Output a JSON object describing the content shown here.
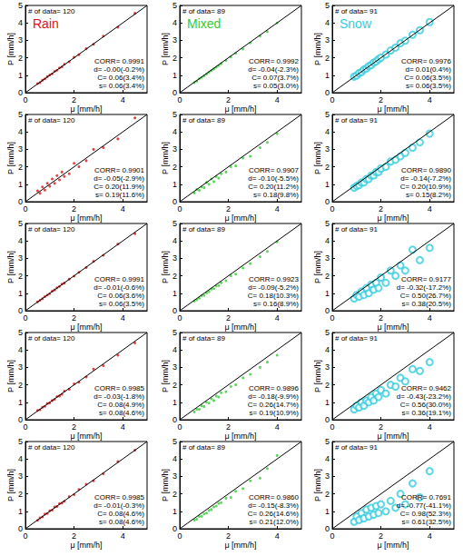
{
  "chart_data": [
    {
      "type": "scatter",
      "title": "Rain",
      "annotations": [
        "# of data= 120",
        "CORR= 0.9991",
        "d= -0.00(-0.2%)",
        "C= 0.06(3.4%)",
        "s= 0.06(3.4%)"
      ],
      "xlabel": "μ [mm/h]",
      "ylabel": "P [mm/h]",
      "xlim": [
        0,
        5
      ],
      "ylim": [
        0,
        5
      ],
      "xticks": [
        0,
        2,
        4
      ],
      "yticks": [
        0,
        1,
        2,
        3,
        4,
        5
      ],
      "color": "#dd1111",
      "marker": "dot",
      "x": [
        0.5,
        0.6,
        0.7,
        0.8,
        0.9,
        1.0,
        1.1,
        1.2,
        1.3,
        1.4,
        1.5,
        1.6,
        1.8,
        2.0,
        2.2,
        2.5,
        2.8,
        3.2,
        3.8,
        4.5
      ],
      "values": [
        0.52,
        0.58,
        0.71,
        0.79,
        0.92,
        1.01,
        1.08,
        1.22,
        1.29,
        1.42,
        1.48,
        1.63,
        1.77,
        2.03,
        2.18,
        2.52,
        2.77,
        3.24,
        3.75,
        4.55
      ]
    },
    {
      "type": "scatter",
      "title": "Mixed",
      "annotations": [
        "# of data= 89",
        "CORR= 0.9992",
        "d= -0.04(-2.3%)",
        "C= 0.07(3.7%)",
        "s= 0.05(3.0%)"
      ],
      "xlabel": "μ [mm/h]",
      "ylabel": "P [mm/h]",
      "xlim": [
        0,
        5
      ],
      "ylim": [
        0,
        5
      ],
      "xticks": [
        0,
        2,
        4
      ],
      "yticks": [
        0,
        1,
        2,
        3,
        4,
        5
      ],
      "color": "#33cc33",
      "marker": "dot",
      "x": [
        0.6,
        0.7,
        0.8,
        0.9,
        1.0,
        1.1,
        1.2,
        1.3,
        1.4,
        1.5,
        1.6,
        1.7,
        1.9,
        2.1,
        2.3,
        2.6,
        2.9,
        3.3,
        3.6,
        4.0
      ],
      "values": [
        0.58,
        0.66,
        0.79,
        0.87,
        0.96,
        1.06,
        1.17,
        1.26,
        1.36,
        1.46,
        1.55,
        1.66,
        1.85,
        2.04,
        2.25,
        2.5,
        2.85,
        3.25,
        3.5,
        4.0
      ]
    },
    {
      "type": "scatter",
      "title": "Snow",
      "annotations": [
        "# of data= 91",
        "CORR= 0.9976",
        "d= 0.01(0.4%)",
        "C= 0.06(3.5%)",
        "s= 0.06(3.5%)"
      ],
      "xlabel": "μ [mm/h]",
      "ylabel": "P [mm/h]",
      "xlim": [
        0,
        5
      ],
      "ylim": [
        0,
        5
      ],
      "xticks": [
        0,
        2,
        4
      ],
      "yticks": [
        0,
        1,
        2,
        3,
        4,
        5
      ],
      "color": "#33ccdd",
      "marker": "circle",
      "x": [
        0.9,
        1.0,
        1.1,
        1.2,
        1.3,
        1.4,
        1.5,
        1.6,
        1.7,
        1.8,
        1.9,
        2.0,
        2.2,
        2.4,
        2.6,
        2.8,
        3.0,
        3.3,
        3.6,
        4.0
      ],
      "values": [
        0.92,
        0.98,
        1.12,
        1.18,
        1.32,
        1.39,
        1.52,
        1.58,
        1.72,
        1.79,
        1.92,
        2.01,
        2.18,
        2.42,
        2.58,
        2.83,
        2.98,
        3.32,
        3.58,
        4.05
      ]
    },
    {
      "type": "scatter",
      "annotations": [
        "# of data= 120",
        "CORR= 0.9901",
        "d= -0.05(-2.9%)",
        "C= 0.20(11.9%)",
        "s= 0.19(11.6%)"
      ],
      "xlabel": "μ [mm/h]",
      "ylabel": "P [mm/h]",
      "xlim": [
        0,
        5
      ],
      "ylim": [
        0,
        5
      ],
      "xticks": [
        0,
        2,
        4
      ],
      "yticks": [
        0,
        1,
        2,
        3,
        4,
        5
      ],
      "color": "#dd1111",
      "marker": "dot",
      "x": [
        0.5,
        0.6,
        0.7,
        0.8,
        0.9,
        1.0,
        1.1,
        1.2,
        1.3,
        1.4,
        1.5,
        1.6,
        1.8,
        2.0,
        2.2,
        2.5,
        2.8,
        3.2,
        3.8,
        4.5
      ],
      "values": [
        0.62,
        0.48,
        0.85,
        0.66,
        1.05,
        0.88,
        1.3,
        1.05,
        1.5,
        1.25,
        1.7,
        1.45,
        1.6,
        2.2,
        2.0,
        2.35,
        3.0,
        3.1,
        3.6,
        4.8
      ]
    },
    {
      "type": "scatter",
      "annotations": [
        "# of data= 89",
        "CORR= 0.9907",
        "d= -0.10(-5.5%)",
        "C= 0.20(11.2%)",
        "s= 0.18(9.8%)"
      ],
      "xlabel": "μ [mm/h]",
      "ylabel": "P [mm/h]",
      "xlim": [
        0,
        5
      ],
      "ylim": [
        0,
        5
      ],
      "xticks": [
        0,
        2,
        4
      ],
      "yticks": [
        0,
        1,
        2,
        3,
        4,
        5
      ],
      "color": "#33cc33",
      "marker": "dot",
      "x": [
        0.6,
        0.7,
        0.8,
        0.9,
        1.0,
        1.1,
        1.2,
        1.3,
        1.4,
        1.5,
        1.6,
        1.7,
        1.9,
        2.1,
        2.3,
        2.6,
        2.9,
        3.3,
        3.6,
        4.0
      ],
      "values": [
        0.5,
        0.7,
        0.65,
        0.85,
        0.8,
        1.1,
        1.0,
        1.3,
        1.15,
        1.45,
        1.35,
        1.6,
        1.7,
        2.0,
        2.05,
        2.5,
        2.6,
        3.1,
        3.4,
        3.9
      ]
    },
    {
      "type": "scatter",
      "annotations": [
        "# of data= 91",
        "CORR= 0.9890",
        "d= -0.14(-7.2%)",
        "C= 0.20(10.9%)",
        "s= 0.15(8.2%)"
      ],
      "xlabel": "μ [mm/h]",
      "ylabel": "P [mm/h]",
      "xlim": [
        0,
        5
      ],
      "ylim": [
        0,
        5
      ],
      "xticks": [
        0,
        2,
        4
      ],
      "yticks": [
        0,
        1,
        2,
        3,
        4,
        5
      ],
      "color": "#33ccdd",
      "marker": "circle",
      "x": [
        0.9,
        1.0,
        1.1,
        1.2,
        1.3,
        1.4,
        1.5,
        1.6,
        1.7,
        1.8,
        1.9,
        2.0,
        2.2,
        2.4,
        2.6,
        2.8,
        3.0,
        3.3,
        3.6,
        4.0
      ],
      "values": [
        0.8,
        0.9,
        0.95,
        1.1,
        1.1,
        1.3,
        1.3,
        1.5,
        1.5,
        1.7,
        1.7,
        1.9,
        2.0,
        2.3,
        2.4,
        2.6,
        2.8,
        3.1,
        3.4,
        3.9
      ]
    },
    {
      "type": "scatter",
      "annotations": [
        "# of data= 120",
        "CORR= 0.9991",
        "d= -0.01(-0.6%)",
        "C= 0.06(3.6%)",
        "s= 0.06(3.5%)"
      ],
      "xlabel": "μ [mm/h]",
      "ylabel": "P [mm/h]",
      "xlim": [
        0,
        5
      ],
      "ylim": [
        0,
        5
      ],
      "xticks": [
        0,
        2,
        4
      ],
      "yticks": [
        0,
        1,
        2,
        3,
        4,
        5
      ],
      "color": "#dd1111",
      "marker": "dot",
      "x": [
        0.5,
        0.6,
        0.7,
        0.8,
        0.9,
        1.0,
        1.1,
        1.2,
        1.3,
        1.4,
        1.5,
        1.6,
        1.8,
        2.0,
        2.2,
        2.5,
        2.8,
        3.2,
        3.8,
        4.5
      ],
      "values": [
        0.51,
        0.6,
        0.69,
        0.81,
        0.9,
        0.98,
        1.12,
        1.19,
        1.31,
        1.39,
        1.52,
        1.58,
        1.81,
        1.98,
        2.2,
        2.47,
        2.83,
        3.18,
        3.82,
        4.42
      ]
    },
    {
      "type": "scatter",
      "annotations": [
        "# of data= 89",
        "CORR= 0.9923",
        "d= -0.09(-5.2%)",
        "C= 0.18(10.3%)",
        "s= 0.16(8.9%)"
      ],
      "xlabel": "μ [mm/h]",
      "ylabel": "P [mm/h]",
      "xlim": [
        0,
        5
      ],
      "ylim": [
        0,
        5
      ],
      "xticks": [
        0,
        2,
        4
      ],
      "yticks": [
        0,
        1,
        2,
        3,
        4,
        5
      ],
      "color": "#33cc33",
      "marker": "dot",
      "x": [
        0.6,
        0.7,
        0.8,
        0.9,
        1.0,
        1.1,
        1.2,
        1.3,
        1.4,
        1.5,
        1.6,
        1.7,
        1.9,
        2.1,
        2.3,
        2.6,
        2.9,
        3.3,
        3.6,
        4.0
      ],
      "values": [
        0.55,
        0.62,
        0.72,
        0.86,
        0.88,
        1.02,
        1.1,
        1.24,
        1.26,
        1.42,
        1.44,
        1.6,
        1.72,
        2.0,
        2.1,
        2.45,
        2.7,
        3.1,
        3.4,
        3.95
      ]
    },
    {
      "type": "scatter",
      "annotations": [
        "# of data= 91",
        "CORR= 0.9177",
        "d= -0.32(-17.2%)",
        "C= 0.50(26.7%)",
        "s= 0.38(20.5%)"
      ],
      "xlabel": "μ [mm/h]",
      "ylabel": "P [mm/h]",
      "xlim": [
        0,
        5
      ],
      "ylim": [
        0,
        5
      ],
      "xticks": [
        0,
        2,
        4
      ],
      "yticks": [
        0,
        1,
        2,
        3,
        4,
        5
      ],
      "color": "#33ccdd",
      "marker": "circle",
      "x": [
        0.9,
        1.0,
        1.1,
        1.2,
        1.3,
        1.4,
        1.5,
        1.6,
        1.7,
        1.8,
        1.9,
        2.0,
        2.2,
        2.4,
        2.6,
        2.8,
        3.0,
        3.3,
        3.6,
        4.0
      ],
      "values": [
        0.7,
        0.9,
        0.8,
        1.1,
        0.9,
        1.3,
        1.0,
        1.5,
        1.2,
        1.6,
        1.3,
        1.9,
        1.6,
        2.3,
        2.0,
        2.6,
        2.3,
        3.5,
        2.9,
        3.6
      ]
    },
    {
      "type": "scatter",
      "annotations": [
        "# of data= 120",
        "CORR= 0.9985",
        "d= -0.03(-1.8%)",
        "C= 0.08(4.9%)",
        "s= 0.08(4.6%)"
      ],
      "xlabel": "μ [mm/h]",
      "ylabel": "P [mm/h]",
      "xlim": [
        0,
        5
      ],
      "ylim": [
        0,
        5
      ],
      "xticks": [
        0,
        2,
        4
      ],
      "yticks": [
        0,
        1,
        2,
        3,
        4,
        5
      ],
      "color": "#dd1111",
      "marker": "dot",
      "x": [
        0.5,
        0.6,
        0.7,
        0.8,
        0.9,
        1.0,
        1.1,
        1.2,
        1.3,
        1.4,
        1.5,
        1.6,
        1.8,
        2.0,
        2.2,
        2.5,
        2.8,
        3.2,
        3.8,
        4.5
      ],
      "values": [
        0.53,
        0.57,
        0.72,
        0.77,
        0.93,
        0.96,
        1.1,
        1.17,
        1.33,
        1.36,
        1.46,
        1.64,
        1.75,
        2.06,
        2.15,
        2.45,
        2.9,
        3.1,
        3.7,
        4.4
      ]
    },
    {
      "type": "scatter",
      "annotations": [
        "# of data= 89",
        "CORR= 0.9896",
        "d= -0.18(-9.9%)",
        "C= 0.26(14.7%)",
        "s= 0.19(10.9%)"
      ],
      "xlabel": "μ [mm/h]",
      "ylabel": "P [mm/h]",
      "xlim": [
        0,
        5
      ],
      "ylim": [
        0,
        5
      ],
      "xticks": [
        0,
        2,
        4
      ],
      "yticks": [
        0,
        1,
        2,
        3,
        4,
        5
      ],
      "color": "#33cc33",
      "marker": "dot",
      "x": [
        0.6,
        0.7,
        0.8,
        0.9,
        1.0,
        1.1,
        1.2,
        1.3,
        1.4,
        1.5,
        1.6,
        1.7,
        1.9,
        2.1,
        2.3,
        2.6,
        2.9,
        3.3,
        3.6,
        4.0
      ],
      "values": [
        0.45,
        0.6,
        0.6,
        0.8,
        0.75,
        1.0,
        0.95,
        1.2,
        1.1,
        1.35,
        1.3,
        1.55,
        1.6,
        1.9,
        2.0,
        2.4,
        2.6,
        3.0,
        3.3,
        3.7
      ]
    },
    {
      "type": "scatter",
      "annotations": [
        "# of data= 91",
        "CORR= 0.9462",
        "d= -0.43(-23.2%)",
        "C= 0.56(30.0%)",
        "s= 0.36(19.1%)"
      ],
      "xlabel": "μ [mm/h]",
      "ylabel": "P [mm/h]",
      "xlim": [
        0,
        5
      ],
      "ylim": [
        0,
        5
      ],
      "xticks": [
        0,
        2,
        4
      ],
      "yticks": [
        0,
        1,
        2,
        3,
        4,
        5
      ],
      "color": "#33ccdd",
      "marker": "circle",
      "x": [
        0.9,
        1.0,
        1.1,
        1.2,
        1.3,
        1.4,
        1.5,
        1.6,
        1.7,
        1.8,
        1.9,
        2.0,
        2.2,
        2.4,
        2.6,
        2.8,
        3.0,
        3.3,
        3.6,
        4.0
      ],
      "values": [
        0.6,
        0.8,
        0.7,
        1.0,
        0.8,
        1.1,
        1.0,
        1.3,
        1.1,
        1.5,
        1.3,
        1.7,
        1.5,
        2.0,
        1.9,
        2.4,
        2.2,
        2.9,
        2.8,
        3.3
      ]
    },
    {
      "type": "scatter",
      "annotations": [
        "# of data= 120",
        "CORR= 0.9985",
        "d= -0.01(-0.3%)",
        "C= 0.08(4.6%)",
        "s= 0.08(4.6%)"
      ],
      "xlabel": "μ [mm/h]",
      "ylabel": "P [mm/h]",
      "xlim": [
        0,
        5
      ],
      "ylim": [
        0,
        5
      ],
      "xticks": [
        0,
        2,
        4
      ],
      "yticks": [
        0,
        1,
        2,
        3,
        4,
        5
      ],
      "color": "#dd1111",
      "marker": "dot",
      "x": [
        0.5,
        0.6,
        0.7,
        0.8,
        0.9,
        1.0,
        1.1,
        1.2,
        1.3,
        1.4,
        1.5,
        1.6,
        1.8,
        2.0,
        2.2,
        2.5,
        2.8,
        3.2,
        3.8,
        4.5
      ],
      "values": [
        0.48,
        0.62,
        0.68,
        0.84,
        0.87,
        1.03,
        1.07,
        1.25,
        1.28,
        1.44,
        1.47,
        1.57,
        1.84,
        1.95,
        2.25,
        2.55,
        2.75,
        3.15,
        3.85,
        4.5
      ]
    },
    {
      "type": "scatter",
      "annotations": [
        "# of data= 89",
        "CORR= 0.9860",
        "d= -0.15(-8.3%)",
        "C= 0.26(14.6%)",
        "s= 0.21(12.0%)"
      ],
      "xlabel": "μ [mm/h]",
      "ylabel": "P [mm/h]",
      "xlim": [
        0,
        5
      ],
      "ylim": [
        0,
        5
      ],
      "xticks": [
        0,
        2,
        4
      ],
      "yticks": [
        0,
        1,
        2,
        3,
        4,
        5
      ],
      "color": "#33cc33",
      "marker": "dot",
      "x": [
        0.6,
        0.7,
        0.8,
        0.9,
        1.0,
        1.1,
        1.2,
        1.3,
        1.4,
        1.5,
        1.6,
        1.7,
        1.9,
        2.1,
        2.3,
        2.6,
        2.9,
        3.3,
        3.6,
        4.0
      ],
      "values": [
        0.5,
        0.55,
        0.7,
        0.72,
        0.85,
        0.9,
        1.05,
        1.1,
        1.25,
        1.3,
        1.45,
        1.5,
        1.75,
        1.8,
        2.15,
        2.3,
        2.75,
        2.9,
        3.45,
        4.2
      ]
    },
    {
      "type": "scatter",
      "annotations": [
        "# of data= 91",
        "CORR= 0.7691",
        "d= -0.77(-41.1%)",
        "C= 0.98(52.3%)",
        "s= 0.61(32.5%)"
      ],
      "xlabel": "μ [mm/h]",
      "ylabel": "P [mm/h]",
      "xlim": [
        0,
        5
      ],
      "ylim": [
        0,
        5
      ],
      "xticks": [
        0,
        2,
        4
      ],
      "yticks": [
        0,
        1,
        2,
        3,
        4,
        5
      ],
      "color": "#33ccdd",
      "marker": "circle",
      "x": [
        0.9,
        1.0,
        1.1,
        1.2,
        1.3,
        1.4,
        1.5,
        1.6,
        1.7,
        1.8,
        1.9,
        2.0,
        2.2,
        2.4,
        2.6,
        2.8,
        3.0,
        3.3,
        3.6,
        4.0
      ],
      "values": [
        0.4,
        0.7,
        0.5,
        0.9,
        0.6,
        1.1,
        0.7,
        1.2,
        0.8,
        1.3,
        0.9,
        1.4,
        1.0,
        1.6,
        1.2,
        2.0,
        1.4,
        2.6,
        1.8,
        3.3
      ]
    }
  ]
}
